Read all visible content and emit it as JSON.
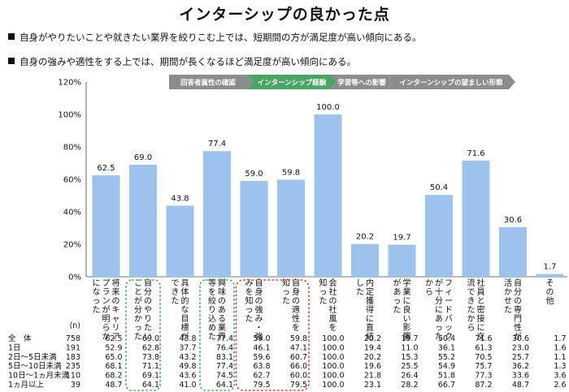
{
  "title": "インターシップの良かった点",
  "bullets": [
    "自身がやりたいことや就きたい業界を絞りこむ上では、短期間の方が満足度が高い傾向にある。",
    "自身の強みや適性をする上では、期間が長くなるほど満足度が高い傾向にある。"
  ],
  "stages": [
    {
      "label": "回答者属性の確認",
      "color": "#8c8c8c"
    },
    {
      "label": "インターンシップ経験",
      "color": "#4aa564"
    },
    {
      "label": "学習等への影響",
      "color": "#8c8c8c"
    },
    {
      "label": "インターンシップの望ましい形態",
      "color": "#8c8c8c"
    }
  ],
  "colors": {
    "bar": "#9cc3ec",
    "green_box": "#4aa564",
    "red_box": "#e03a3a"
  },
  "chart_data": {
    "type": "bar",
    "ylim": [
      0,
      120
    ],
    "yticks": [
      "0%",
      "20%",
      "40%",
      "60%",
      "80%",
      "100%",
      "120%"
    ],
    "categories": [
      "将来のキャリアプランが明らかになった",
      "自分のやりたいことが分かった",
      "具体的な目標ができた",
      "興味のある業界等を絞り込めた",
      "自身の強み・強みを知った",
      "自身の適性を知った",
      "会社の社風を知った",
      "内定獲得に直結した",
      "学業に良い影響があった",
      "フィードバックが十分にあったから",
      "社員と密接に交流できたから",
      "自分の専門性が活かせた",
      "その他"
    ],
    "category_lines": [
      [
        "将来のキャリア",
        "プランが明らか",
        "になった"
      ],
      [
        "自分のやりたい",
        "ことが分かった"
      ],
      [
        "具体的な目標が",
        "できた"
      ],
      [
        "興味のある業界",
        "等を絞り込めた"
      ],
      [
        "自身の強み・強",
        "みを知った"
      ],
      [
        "自身の適性を",
        "知った"
      ],
      [
        "会社の社風を",
        "知った"
      ],
      [
        "内定獲得に直結",
        "した"
      ],
      [
        "学業に良い影響",
        "があった"
      ],
      [
        "フィードバック",
        "が十分にあった",
        "から"
      ],
      [
        "社員と密接に交",
        "流できたから"
      ],
      [
        "自分の専門性が",
        "活かせた"
      ],
      [
        "その他"
      ]
    ],
    "values": [
      62.5,
      69.0,
      43.8,
      77.4,
      59.0,
      59.8,
      100.0,
      20.2,
      19.7,
      50.4,
      71.6,
      30.6,
      1.7
    ],
    "value_labels": [
      "62.5",
      "69.0",
      "43.8",
      "77.4",
      "59.0",
      "59.8",
      "100.0",
      "20.2",
      "19.7",
      "50.4",
      "71.6",
      "30.6",
      "1.7"
    ],
    "n_header": "(n)",
    "highlight_green": [
      1,
      3
    ],
    "highlight_red": [
      4,
      5
    ],
    "table": [
      {
        "label": "全　体",
        "n": "758",
        "values": [
          "62.5",
          "69.0",
          "43.8",
          "77.4",
          "59.0",
          "59.8",
          "100.0",
          "20.2",
          "19.7",
          "50.4",
          "71.6",
          "30.6",
          "1.7"
        ]
      },
      {
        "label": "1日",
        "n": "191",
        "values": [
          "52.9",
          "62.8",
          "37.7",
          "76.4",
          "46.1",
          "47.1",
          "100.0",
          "19.4",
          "11.0",
          "36.1",
          "61.3",
          "23.0",
          "1.6"
        ]
      },
      {
        "label": "2日～5日未満",
        "n": "183",
        "values": [
          "65.0",
          "73.8",
          "43.2",
          "83.1",
          "59.6",
          "60.7",
          "100.0",
          "20.2",
          "15.3",
          "55.2",
          "70.5",
          "25.7",
          "1.1"
        ]
      },
      {
        "label": "5日～10日未満",
        "n": "235",
        "values": [
          "68.1",
          "71.1",
          "49.8",
          "77.4",
          "63.8",
          "66.0",
          "100.0",
          "19.6",
          "25.5",
          "54.9",
          "75.7",
          "36.2",
          "1.3"
        ]
      },
      {
        "label": "10日～1ヵ月未満",
        "n": "110",
        "values": [
          "68.2",
          "69.1",
          "43.6",
          "74.5",
          "62.7",
          "60.0",
          "100.0",
          "21.8",
          "26.4",
          "51.8",
          "77.3",
          "33.6",
          "3.6"
        ]
      },
      {
        "label": "1ヵ月以上",
        "n": "39",
        "values": [
          "48.7",
          "64.1",
          "41.0",
          "64.1",
          "79.5",
          "79.5",
          "100.0",
          "23.1",
          "28.2",
          "66.7",
          "87.2",
          "48.7",
          "2.6"
        ]
      }
    ]
  }
}
